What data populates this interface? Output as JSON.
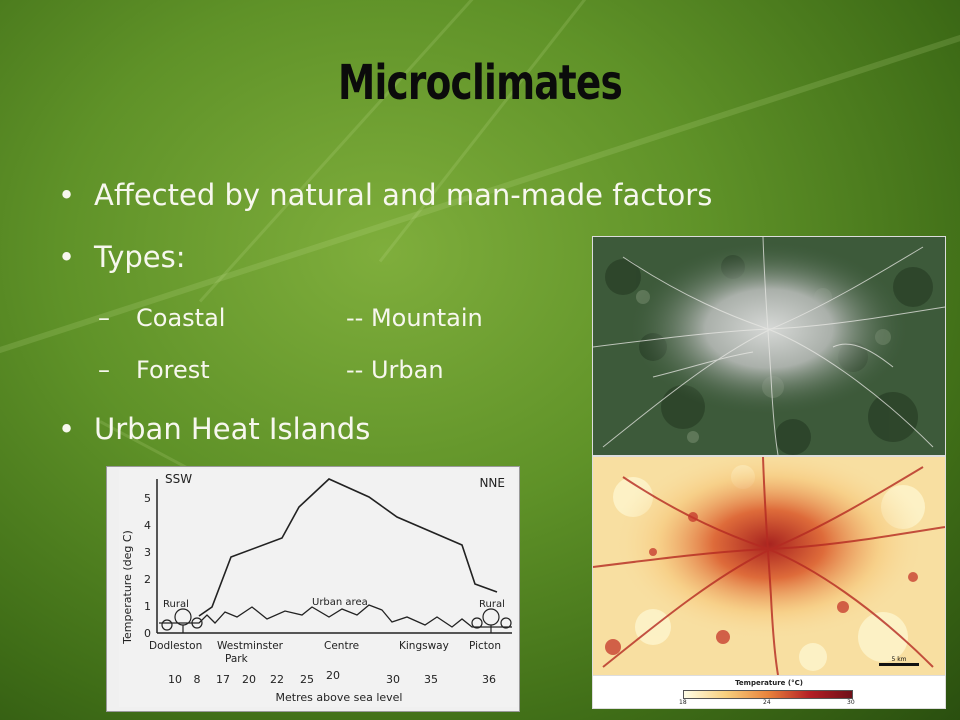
{
  "slide": {
    "title": "Microclimates",
    "bullets": [
      "Affected by natural and man-made factors",
      "Types:",
      "Urban Heat Islands"
    ],
    "types": [
      {
        "left": "Coastal",
        "right": "-- Mountain"
      },
      {
        "left": "Forest",
        "right": "-- Urban"
      }
    ],
    "bullet_symbol": "•",
    "sub_symbol": "–"
  },
  "heatmap": {
    "legend_title": "Temperature (°C)",
    "ticks": [
      "18",
      "24",
      "30"
    ],
    "scale_label": "5 km"
  },
  "profile": {
    "left_dir": "SSW",
    "right_dir": "NNE",
    "ylabel": "Temperature (deg C)",
    "yticks": [
      "0",
      "1",
      "2",
      "3",
      "4",
      "5"
    ],
    "rural_left": "Rural",
    "rural_right": "Rural",
    "urban_area": "Urban area",
    "places": [
      "Dodleston",
      "Westminster",
      "Park",
      "Centre",
      "Kingsway",
      "Picton"
    ],
    "elevations": [
      "10",
      "8",
      "17",
      "20",
      "22",
      "25",
      "20",
      "30",
      "35",
      "36"
    ],
    "xlabel": "Metres above sea level"
  },
  "colors": {
    "leaf_green": "#5f9228",
    "title": "#0b0b0b",
    "text": "#f7f7ee",
    "heat_low": "#fffde6",
    "heat_high": "#6e0f18"
  }
}
